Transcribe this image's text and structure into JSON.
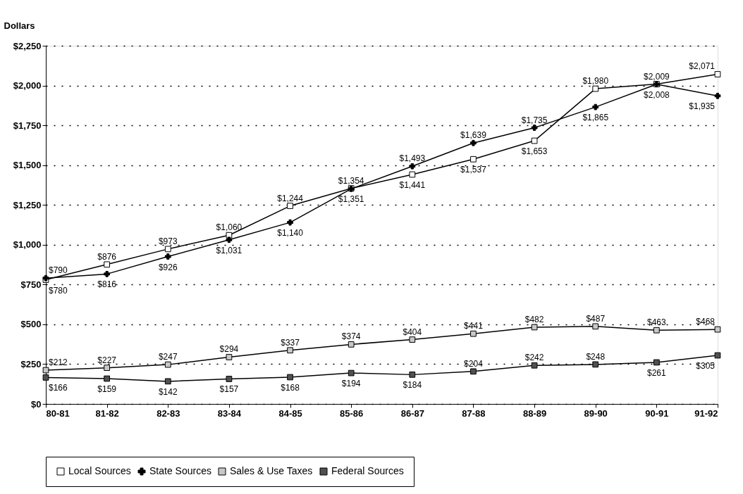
{
  "chart_data": {
    "type": "line",
    "ylabel": "Dollars",
    "categories": [
      "80-81",
      "81-82",
      "82-83",
      "83-84",
      "84-85",
      "85-86",
      "86-87",
      "87-88",
      "88-89",
      "89-90",
      "90-91",
      "91-92"
    ],
    "series": [
      {
        "name": "Local Sources",
        "color": "#ffffff",
        "marker": "square",
        "values": [
          780,
          876,
          973,
          1060,
          1244,
          1354,
          1441,
          1537,
          1653,
          1980,
          2009,
          2071
        ],
        "value_labels": [
          "$780",
          "$876",
          "$973",
          "$1,060",
          "$1,244",
          "$1,354",
          "$1,441",
          "$1,537",
          "$1,653",
          "$1,980",
          "$2,009",
          "$2,071"
        ]
      },
      {
        "name": "State Sources",
        "color": "#000000",
        "marker": "cross",
        "values": [
          790,
          816,
          926,
          1031,
          1140,
          1351,
          1493,
          1639,
          1735,
          1865,
          2008,
          1935
        ],
        "value_labels": [
          "$790",
          "$816",
          "$926",
          "$1,031",
          "$1,140",
          "$1,351",
          "$1,493",
          "$1,639",
          "$1,735",
          "$1,865",
          "$2,008",
          "$1,935"
        ]
      },
      {
        "name": "Sales & Use Taxes",
        "color": "#c8c8c8",
        "marker": "square",
        "values": [
          212,
          227,
          247,
          294,
          337,
          374,
          404,
          441,
          482,
          487,
          463,
          468
        ],
        "value_labels": [
          "$212",
          "$227",
          "$247",
          "$294",
          "$337",
          "$374",
          "$404",
          "$441",
          "$482",
          "$487",
          "$463",
          "$468"
        ]
      },
      {
        "name": "Federal Sources",
        "color": "#505050",
        "marker": "square",
        "values": [
          166,
          159,
          142,
          157,
          168,
          194,
          184,
          204,
          242,
          248,
          261,
          305
        ],
        "value_labels": [
          "$166",
          "$159",
          "$142",
          "$157",
          "$168",
          "$194",
          "$184",
          "$204",
          "$242",
          "$248",
          "$261",
          "$305"
        ]
      }
    ],
    "ylim": [
      0,
      2250
    ],
    "yticks": [
      {
        "value": 0,
        "label": "$0"
      },
      {
        "value": 250,
        "label": "$250"
      },
      {
        "value": 500,
        "label": "$500"
      },
      {
        "value": 750,
        "label": "$750"
      },
      {
        "value": 1000,
        "label": "$1,000"
      },
      {
        "value": 1250,
        "label": "$1,250"
      },
      {
        "value": 1500,
        "label": "$1,500"
      },
      {
        "value": 1750,
        "label": "$1,750"
      },
      {
        "value": 2000,
        "label": "$2,000"
      },
      {
        "value": 2250,
        "label": "$2,250"
      }
    ],
    "grid": "y",
    "legend": "bottom",
    "line_style": "solid"
  }
}
